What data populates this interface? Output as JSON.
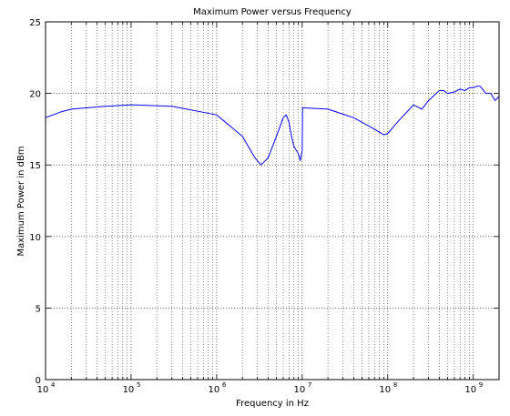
{
  "chart_data": {
    "type": "line",
    "title": "Maximum Power versus Frequency",
    "xlabel": "Frequency in Hz",
    "ylabel": "Maximum Power in dBm",
    "xscale": "log",
    "xlim": [
      10000,
      2000000000
    ],
    "ylim": [
      0,
      25
    ],
    "grid": "dotted, major and minor",
    "xtick_labels": [
      {
        "base": "10",
        "exp": "4",
        "x": 10000
      },
      {
        "base": "10",
        "exp": "5",
        "x": 100000
      },
      {
        "base": "10",
        "exp": "6",
        "x": 1000000
      },
      {
        "base": "10",
        "exp": "7",
        "x": 10000000
      },
      {
        "base": "10",
        "exp": "8",
        "x": 100000000
      },
      {
        "base": "10",
        "exp": "9",
        "x": 1000000000
      }
    ],
    "ytick_labels": [
      "0",
      "5",
      "10",
      "15",
      "20",
      "25"
    ],
    "line_color": "#0000ff",
    "series": [
      {
        "x": [
          10000,
          15000,
          20000,
          50000,
          100000,
          300000,
          1000000,
          2000000,
          2800000,
          3300000,
          4000000,
          5000000,
          6000000,
          6500000,
          7000000,
          7500000,
          8000000,
          9000000,
          9500000,
          10000000,
          10100000,
          20000000,
          40000000,
          70000000,
          90000000,
          100000000,
          130000000,
          200000000,
          250000000,
          300000000,
          400000000,
          450000000,
          500000000,
          600000000,
          700000000,
          800000000,
          900000000,
          1000000000,
          1100000000,
          1200000000,
          1400000000,
          1600000000,
          1800000000,
          2000000000
        ],
        "y": [
          18.3,
          18.7,
          18.9,
          19.1,
          19.2,
          19.1,
          18.5,
          17.0,
          15.5,
          15.0,
          15.5,
          17.0,
          18.3,
          18.5,
          18.0,
          17.0,
          16.3,
          15.8,
          15.3,
          16.0,
          19.0,
          18.9,
          18.3,
          17.5,
          17.1,
          17.2,
          18.0,
          19.2,
          18.9,
          19.5,
          20.2,
          20.2,
          20.0,
          20.1,
          20.3,
          20.2,
          20.4,
          20.4,
          20.5,
          20.5,
          20.0,
          20.0,
          19.5,
          19.8
        ]
      }
    ]
  }
}
